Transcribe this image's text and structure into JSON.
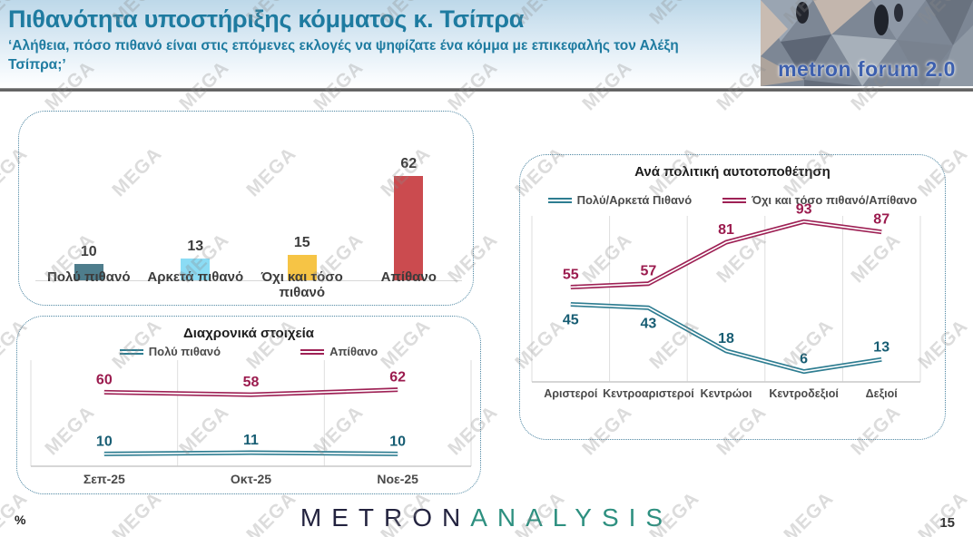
{
  "header": {
    "title": "Πιθανότητα υποστήριξης κόμματος κ. Τσίπρα",
    "subtitle": "‘Αλήθεια, πόσο πιθανό είναι στις επόμενες εκλογές να ψηφίζατε ένα κόμμα με επικεφαλής τον Αλέξη Τσίπρα;’",
    "logo_text": "metron forum 2.0"
  },
  "watermark": {
    "text": "MEGA"
  },
  "footer": {
    "unit_label": "%",
    "brand_part1": "METRON",
    "brand_part2": "ANALYSIS",
    "page_number": "15"
  },
  "colors": {
    "header_title": "#1e7ba0",
    "panel_border": "#4d86a2",
    "teal_series": "#2e7d91",
    "crimson_series": "#9e2155",
    "brand_navy": "#23233f",
    "brand_teal": "#2e9080",
    "logo_text_blue": "#3c5fae"
  },
  "chart_data": [
    {
      "id": "likelihood-bars",
      "type": "bar",
      "categories": [
        "Πολύ πιθανό",
        "Αρκετά πιθανό",
        "Όχι και τόσο πιθανό",
        "Απίθανο"
      ],
      "values": [
        10,
        13,
        15,
        62
      ],
      "bar_colors": [
        "#4e7d8c",
        "#8bdcf5",
        "#f6c445",
        "#cb4b4f"
      ],
      "ylim": [
        0,
        70
      ],
      "data_labels": true,
      "grid": false
    },
    {
      "id": "timeline",
      "type": "line",
      "title": "Διαχρονικά στοιχεία",
      "categories": [
        "Σεπ-25",
        "Οκτ-25",
        "Νοε-25"
      ],
      "series": [
        {
          "name": "Πολύ πιθανό",
          "color": "#2e7d91",
          "label_color": "#175d73",
          "values": [
            10,
            11,
            10
          ],
          "label_positions": [
            "above",
            "above",
            "above"
          ]
        },
        {
          "name": "Απίθανο",
          "color": "#9e2155",
          "label_color": "#9b1b4e",
          "values": [
            60,
            58,
            62
          ],
          "label_positions": [
            "above",
            "above",
            "above"
          ]
        }
      ],
      "ylim": [
        0,
        100
      ],
      "grid": "vertical",
      "legend_position": "top"
    },
    {
      "id": "political-self-placement",
      "type": "line",
      "title": "Ανά πολιτική αυτοτοποθέτηση",
      "categories": [
        "Αριστεροί",
        "Κεντροαριστεροί",
        "Κεντρώοι",
        "Κεντροδεξιοί",
        "Δεξιοί"
      ],
      "series": [
        {
          "name": "Πολύ/Αρκετά Πιθανό",
          "color": "#2e7d91",
          "label_color": "#175d73",
          "values": [
            45,
            43,
            18,
            6,
            13
          ],
          "label_positions": [
            "below",
            "below",
            "above",
            "above",
            "above"
          ]
        },
        {
          "name": "Όχι και τόσο πιθανό/Απίθανο",
          "color": "#9e2155",
          "label_color": "#9b1b4e",
          "values": [
            55,
            57,
            81,
            93,
            87
          ],
          "label_positions": [
            "above",
            "above",
            "above",
            "above",
            "above"
          ]
        }
      ],
      "ylim": [
        0,
        100
      ],
      "grid": "vertical",
      "legend_position": "top"
    }
  ]
}
